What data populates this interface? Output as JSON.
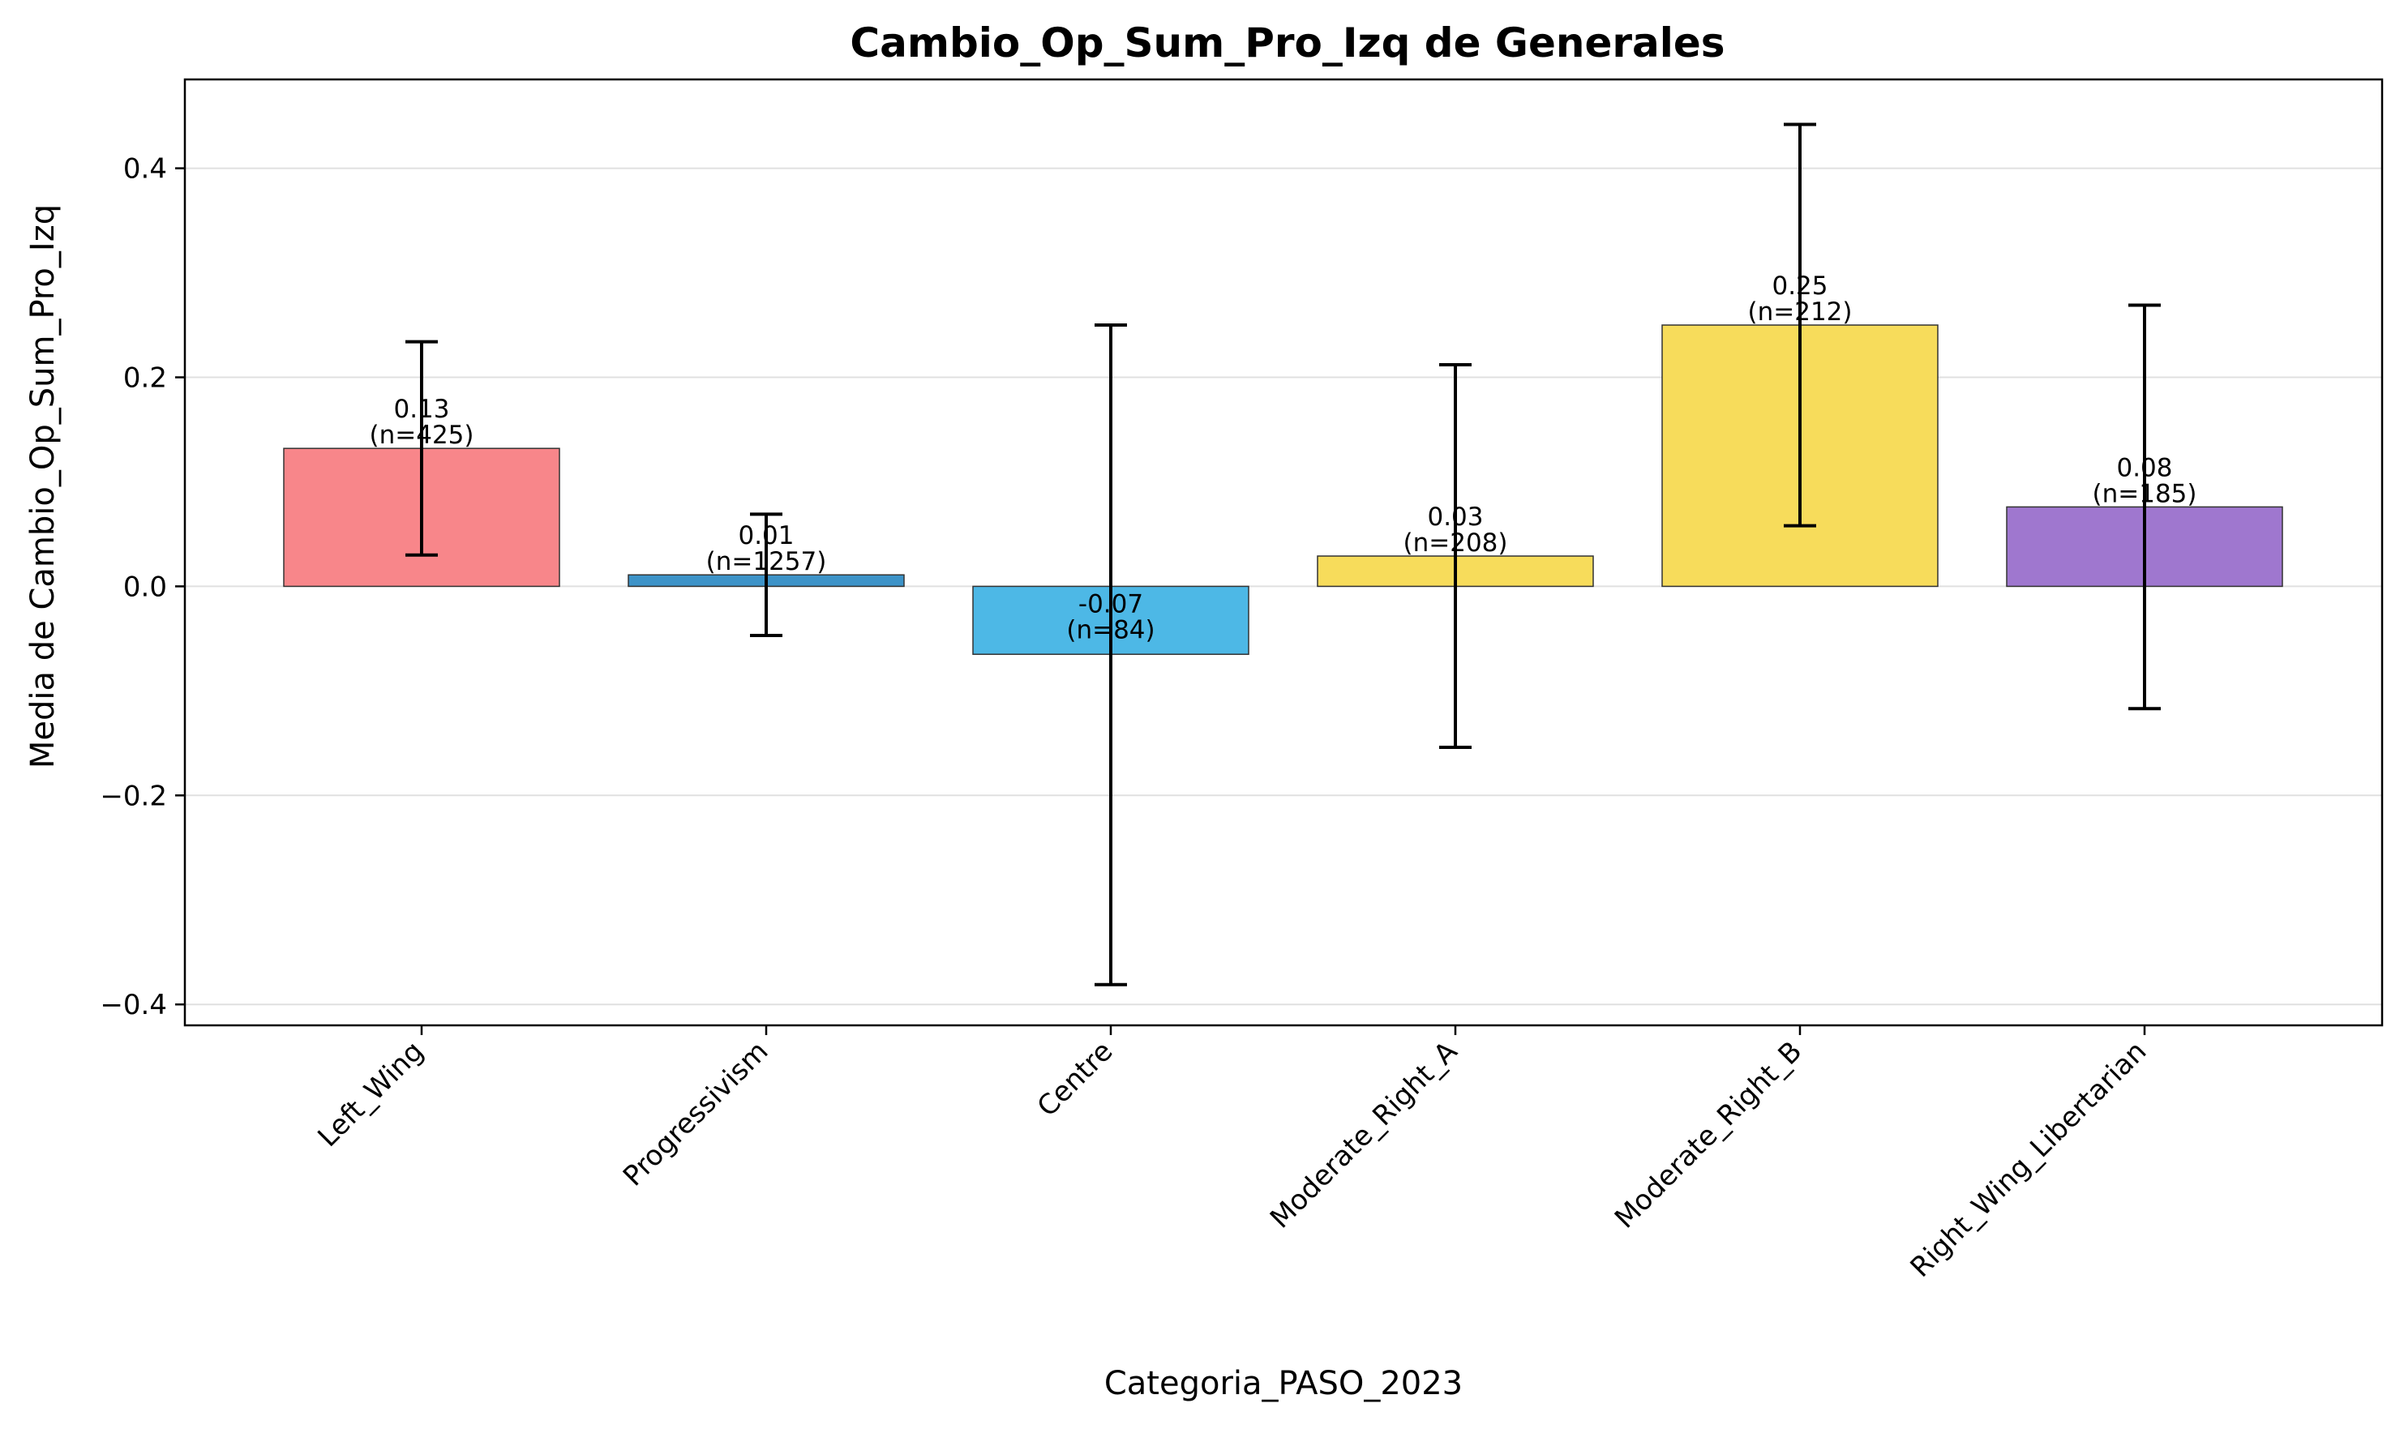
{
  "chart_data": {
    "type": "bar",
    "title": "Cambio_Op_Sum_Pro_Izq de Generales",
    "xlabel": "Categoria_PASO_2023",
    "ylabel": "Media de Cambio_Op_Sum_Pro_Izq",
    "ylim": [
      -0.42,
      0.485
    ],
    "yticks": [
      -0.4,
      -0.2,
      0.0,
      0.2,
      0.4
    ],
    "ytick_labels": [
      "−0.4",
      "−0.2",
      "0.0",
      "0.2",
      "0.4"
    ],
    "grid": "horizontal",
    "categories": [
      "Left_Wing",
      "Progressivism",
      "Centre",
      "Moderate_Right_A",
      "Moderate_Right_B",
      "Right_Wing_Libertarian"
    ],
    "values": [
      0.132,
      0.011,
      -0.065,
      0.029,
      0.25,
      0.076
    ],
    "error_low": [
      0.03,
      -0.047,
      -0.381,
      -0.154,
      0.058,
      -0.117
    ],
    "error_high": [
      0.234,
      0.069,
      0.25,
      0.212,
      0.442,
      0.269
    ],
    "counts": [
      425,
      1257,
      84,
      208,
      212,
      185
    ],
    "value_labels": [
      "0.13",
      "0.01",
      "-0.07",
      "0.03",
      "0.25",
      "0.08"
    ],
    "n_labels": [
      "(n=425)",
      "(n=1257)",
      "(n=84)",
      "(n=208)",
      "(n=212)",
      "(n=185)"
    ],
    "colors": [
      "#f8868a",
      "#3d93c8",
      "#4db8e6",
      "#f7dc5b",
      "#f7dc5b",
      "#9f77cf"
    ]
  }
}
